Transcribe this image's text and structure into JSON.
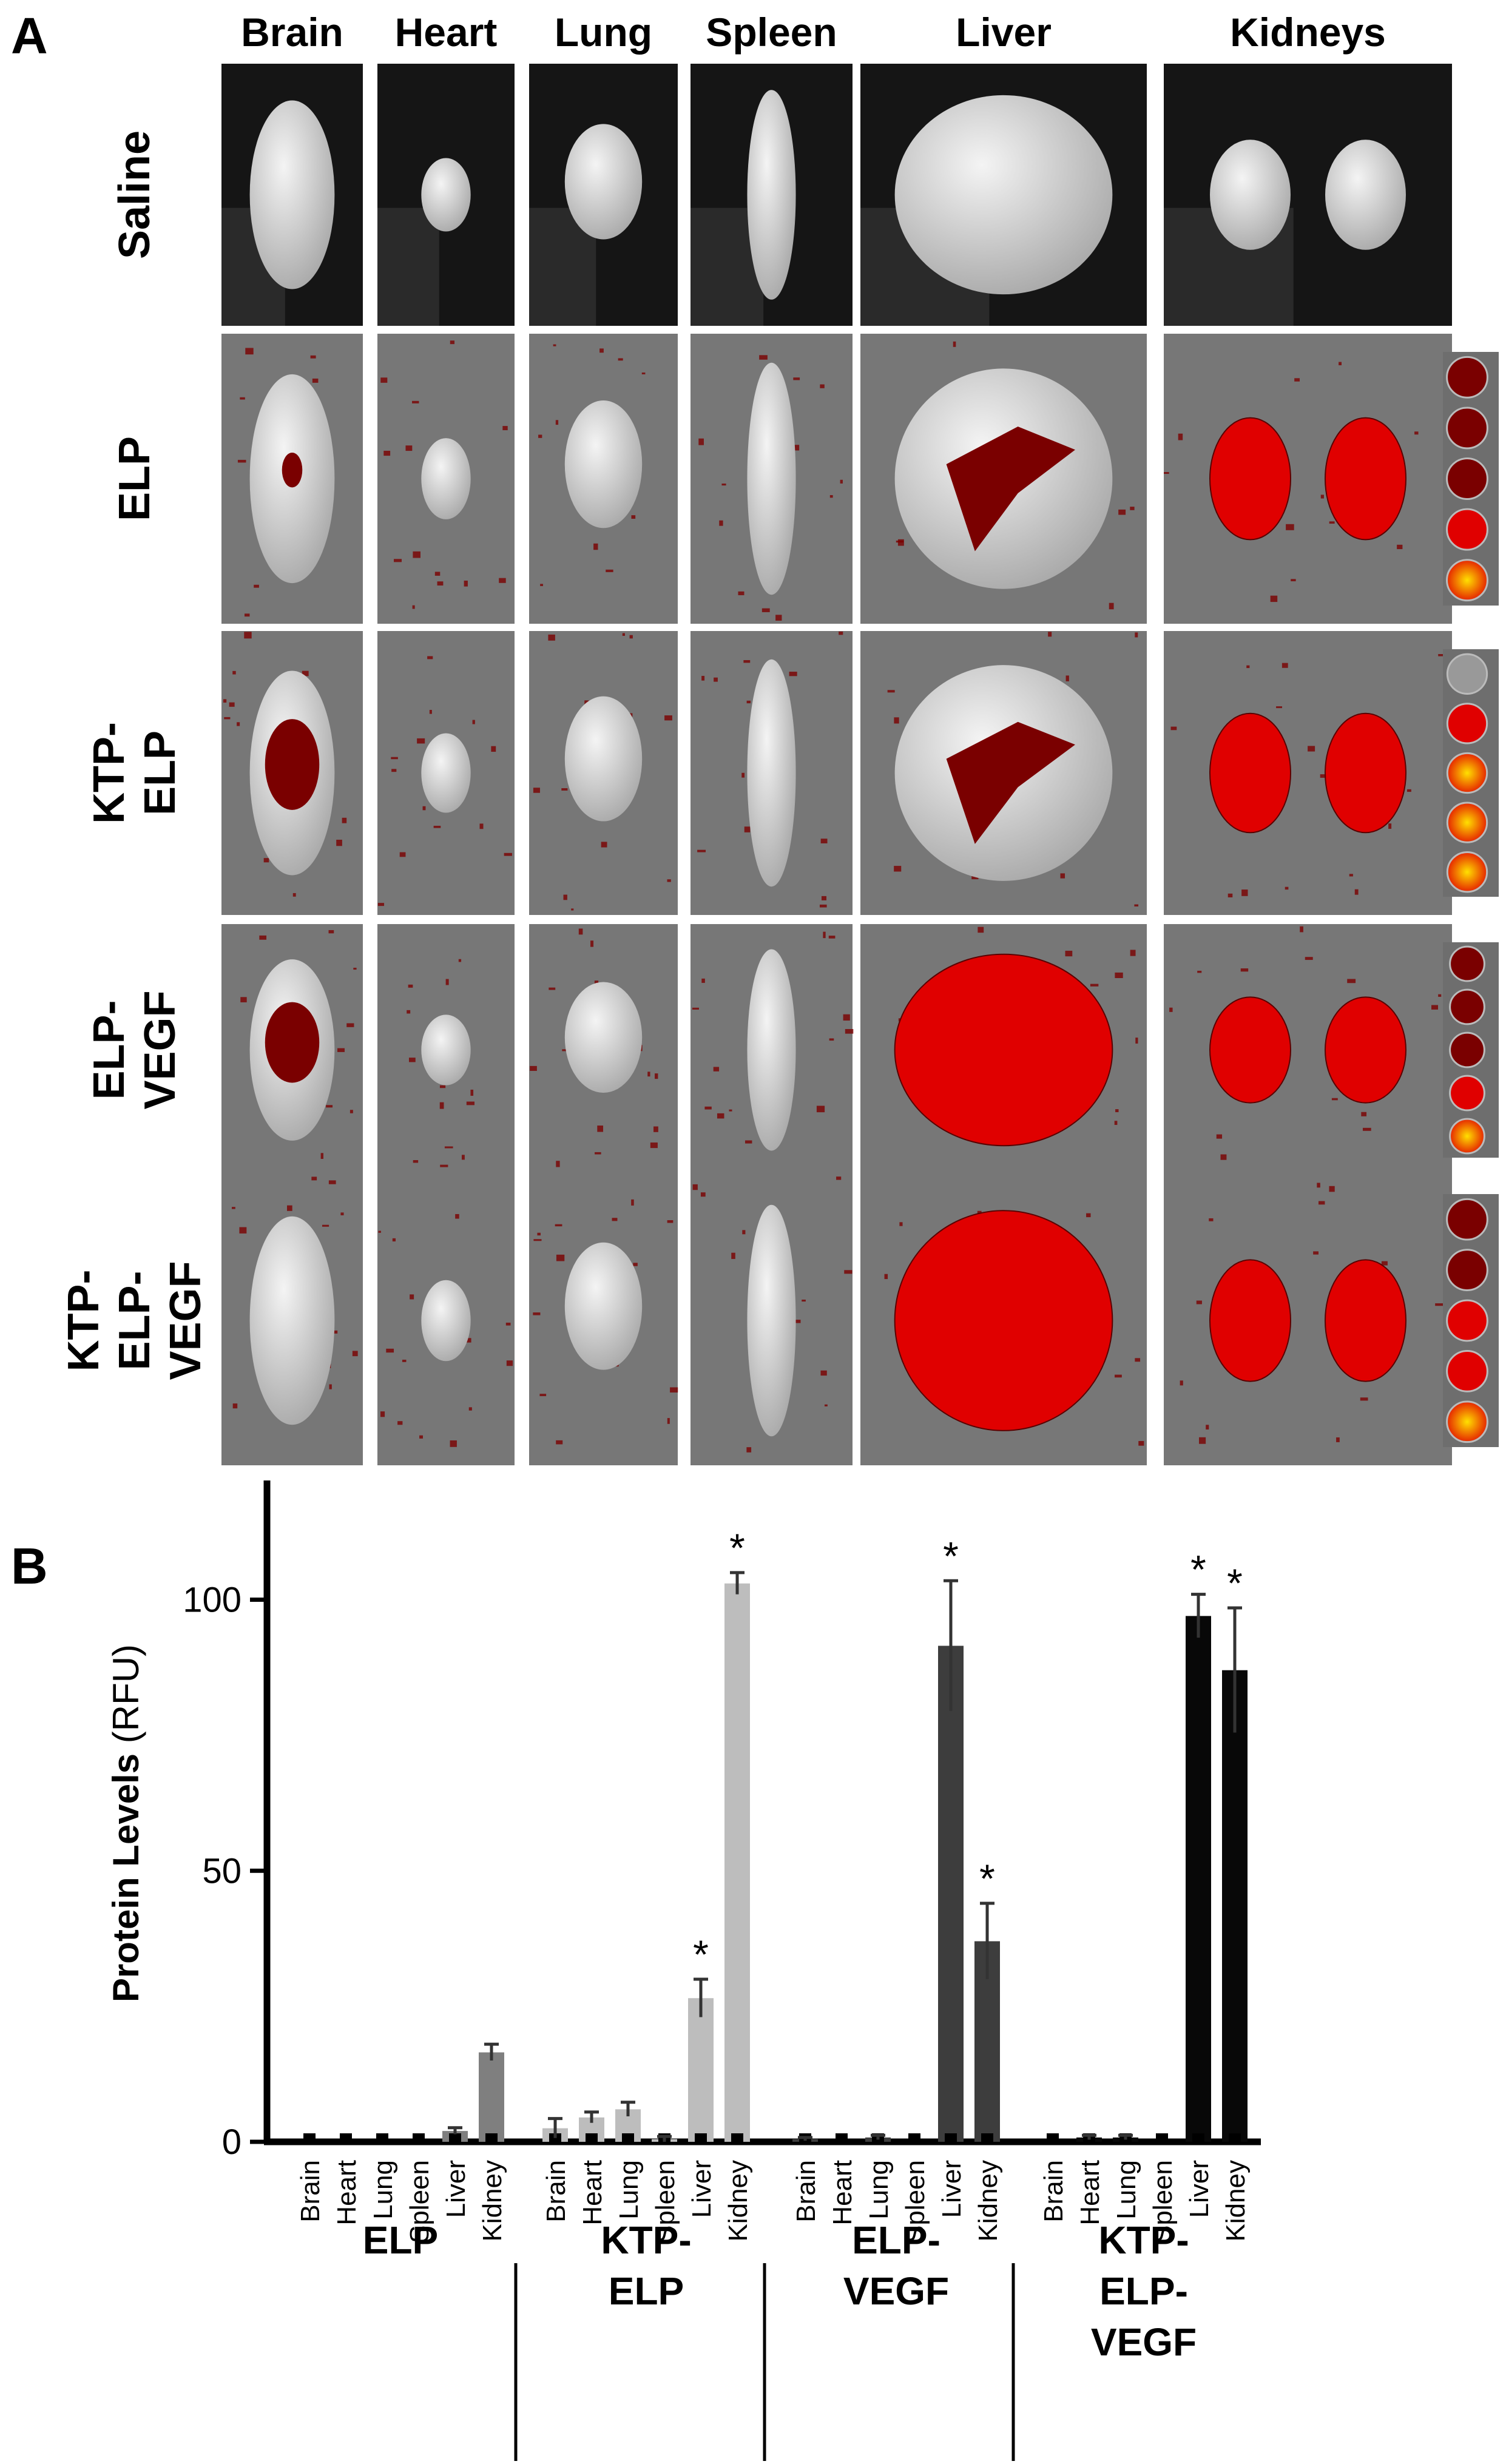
{
  "panel_a": {
    "label": "A",
    "columns": [
      "Brain",
      "Heart",
      "Lung",
      "Spleen",
      "Liver",
      "Kidneys"
    ],
    "rows": [
      {
        "label_lines": [
          "Saline"
        ]
      },
      {
        "label_lines": [
          "ELP"
        ]
      },
      {
        "label_lines": [
          "KTP-",
          "ELP"
        ]
      },
      {
        "label_lines": [
          "ELP-",
          "VEGF"
        ]
      },
      {
        "label_lines": [
          "KTP-",
          "ELP-",
          "VEGF"
        ]
      }
    ],
    "colors": {
      "tissue": "#dcdcdc",
      "background": "#777777",
      "signal": "#e00000",
      "signal_dark": "#7a0000",
      "signal_hot": "#ffe000"
    }
  },
  "panel_b": {
    "label": "B",
    "chart_data": {
      "type": "bar",
      "ylabel_bold": "Protein Levels",
      "ylabel_unit": "(RFU)",
      "ylim": [
        0,
        122
      ],
      "yticks": [
        "0",
        "50",
        "100"
      ],
      "organs": [
        "Brain",
        "Heart",
        "Lung",
        "Spleen",
        "Liver",
        "Kidney"
      ],
      "groups": [
        {
          "label_lines": [
            "ELP"
          ],
          "color": "#7f7f7f",
          "values": [
            0,
            0,
            0,
            0,
            2,
            16.5
          ],
          "errors": [
            0,
            0,
            0,
            0,
            0.6,
            1.5
          ],
          "stars": [
            false,
            false,
            false,
            false,
            false,
            false
          ]
        },
        {
          "label_lines": [
            "KTP-",
            "ELP"
          ],
          "color": "#bdbdbd",
          "values": [
            2.5,
            4.5,
            6,
            0.5,
            26.5,
            103
          ],
          "errors": [
            1.8,
            1,
            1.3,
            0.5,
            3.5,
            2
          ],
          "stars": [
            false,
            false,
            false,
            false,
            true,
            true
          ]
        },
        {
          "label_lines": [
            "ELP-",
            "VEGF"
          ],
          "color": "#3d3d3d",
          "values": [
            0.5,
            0,
            0.8,
            0,
            91.5,
            37
          ],
          "errors": [
            0.3,
            0,
            0.4,
            0,
            12,
            7
          ],
          "stars": [
            false,
            false,
            false,
            false,
            true,
            true
          ]
        },
        {
          "label_lines": [
            "KTP-",
            "ELP-",
            "VEGF"
          ],
          "color": "#080808",
          "values": [
            0,
            0.8,
            0.8,
            0,
            97,
            87
          ],
          "errors": [
            0,
            0.4,
            0.4,
            0,
            4,
            11.5
          ],
          "stars": [
            false,
            false,
            false,
            false,
            true,
            true
          ]
        }
      ],
      "star_symbol": "*"
    }
  }
}
